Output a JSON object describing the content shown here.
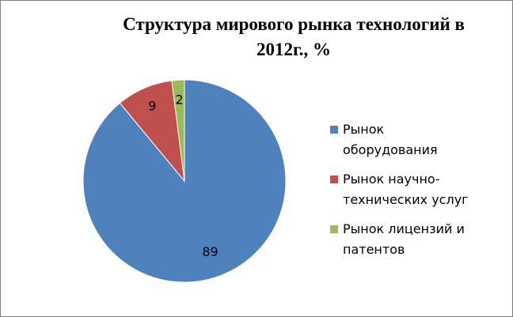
{
  "chart_data": {
    "type": "pie",
    "title": "Структура мирового рынка технологий в 2012г., %",
    "categories": [
      "Рынок оборудования",
      "Рынок научно-технических услуг",
      "Рынок лицензий и патентов"
    ],
    "values": [
      89,
      9,
      2
    ],
    "colors": [
      "#4f81bd",
      "#c0504d",
      "#9bbb59"
    ],
    "legend": "right"
  }
}
